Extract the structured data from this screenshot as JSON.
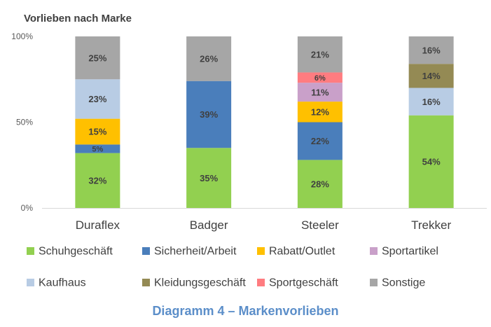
{
  "chart_data": {
    "type": "bar",
    "stacked": true,
    "title": "Vorlieben nach Marke",
    "categories": [
      "Duraflex",
      "Badger",
      "Steeler",
      "Trekker"
    ],
    "y_ticks": [
      "0%",
      "50%",
      "100%"
    ],
    "ylim": [
      0,
      100
    ],
    "grid": false,
    "legend_position": "bottom",
    "series": [
      {
        "name": "Schuhgeschäft",
        "color": "#92d050",
        "values": [
          32,
          35,
          28,
          54
        ],
        "labels": [
          "32%",
          "35%",
          "28%",
          "54%"
        ]
      },
      {
        "name": "Sicherheit/Arbeit",
        "color": "#4a7ebb",
        "values": [
          5,
          39,
          22,
          0
        ],
        "labels": [
          "5%",
          "39%",
          "22%",
          ""
        ]
      },
      {
        "name": "Rabatt/Outlet",
        "color": "#ffc000",
        "values": [
          15,
          0,
          12,
          0
        ],
        "labels": [
          "15%",
          "",
          "12%",
          ""
        ]
      },
      {
        "name": "Sportartikel",
        "color": "#c9a0c9",
        "values": [
          0,
          0,
          11,
          0
        ],
        "labels": [
          "",
          "",
          "11%",
          ""
        ]
      },
      {
        "name": "Kaufhaus",
        "color": "#b8cce4",
        "values": [
          23,
          0,
          0,
          16
        ],
        "labels": [
          "23%",
          "",
          "",
          "16%"
        ]
      },
      {
        "name": "Kleidungsgeschäft",
        "color": "#948a54",
        "values": [
          0,
          0,
          0,
          14
        ],
        "labels": [
          "",
          "",
          "",
          "14%"
        ]
      },
      {
        "name": "Sportgeschäft",
        "color": "#ff7c80",
        "values": [
          0,
          0,
          6,
          0
        ],
        "labels": [
          "",
          "",
          "6%",
          ""
        ]
      },
      {
        "name": "Sonstige",
        "color": "#a6a6a6",
        "values": [
          25,
          26,
          21,
          16
        ],
        "labels": [
          "25%",
          "26%",
          "21%",
          "16%"
        ]
      }
    ]
  },
  "caption": {
    "text": "Diagramm 4 – Markenvorlieben",
    "color": "#5b8ec9"
  }
}
